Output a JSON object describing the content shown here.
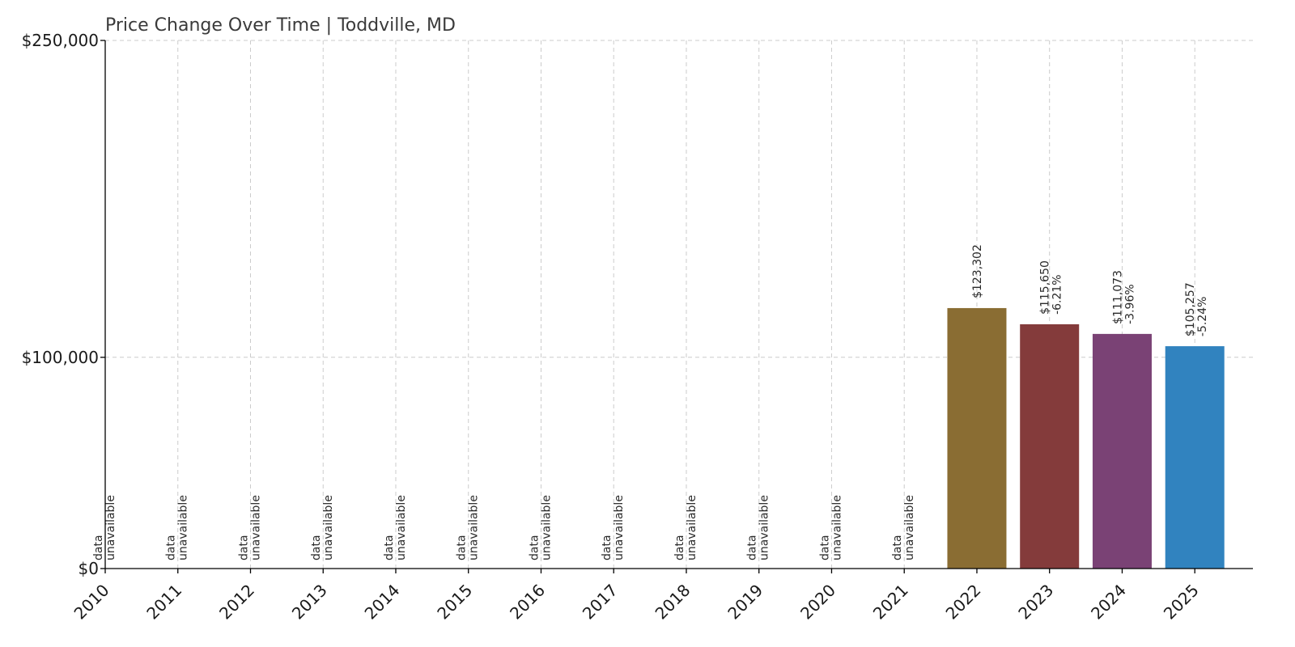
{
  "chart_data": {
    "type": "bar",
    "title": "Price Change Over Time | Toddville, MD",
    "xlabel": "",
    "ylabel": "",
    "ylim": [
      0,
      250000
    ],
    "yticks": [
      {
        "value": 0,
        "label": "$0"
      },
      {
        "value": 100000,
        "label": "$100,000"
      },
      {
        "value": 250000,
        "label": "$250,000"
      }
    ],
    "grid": true,
    "categories": [
      "2010",
      "2011",
      "2012",
      "2013",
      "2014",
      "2015",
      "2016",
      "2017",
      "2018",
      "2019",
      "2020",
      "2021",
      "2022",
      "2023",
      "2024",
      "2025"
    ],
    "values": [
      null,
      null,
      null,
      null,
      null,
      null,
      null,
      null,
      null,
      null,
      null,
      null,
      123302,
      115650,
      111073,
      105257
    ],
    "value_labels": [
      "",
      "",
      "",
      "",
      "",
      "",
      "",
      "",
      "",
      "",
      "",
      "",
      "$123,302",
      "$115,650",
      "$111,073",
      "$105,257"
    ],
    "change_labels": [
      "",
      "",
      "",
      "",
      "",
      "",
      "",
      "",
      "",
      "",
      "",
      "",
      "",
      "-6.21%",
      "-3.96%",
      "-5.24%"
    ],
    "unavailable_label": [
      "data",
      "unavailable"
    ],
    "bar_colors": [
      "#8a6d33",
      "#843b3b",
      "#7a4275",
      "#3183bf"
    ]
  }
}
